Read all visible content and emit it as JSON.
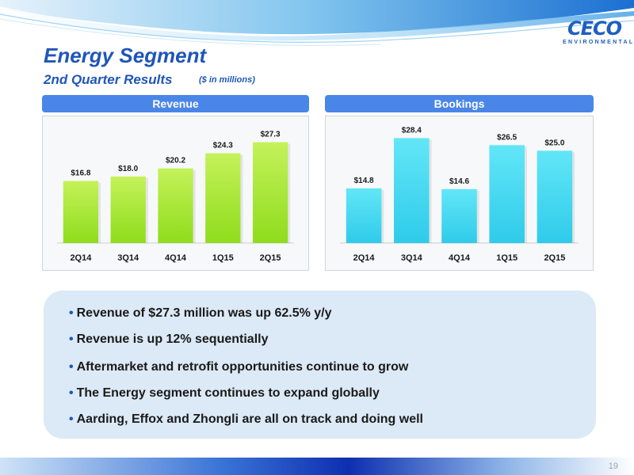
{
  "header": {
    "title": "Energy Segment",
    "subtitle": "2nd Quarter Results",
    "units_note": "($ in millions)"
  },
  "logo": {
    "name": "CECO",
    "tagline": "ENVIRONMENTAL"
  },
  "page_number": "19",
  "colors": {
    "accent": "#1f56b8",
    "panel_header": "#4a86e8",
    "revenue_bar": "#a6e62c",
    "bookings_bar": "#45d9f0",
    "bullet_box": "#dce9f6"
  },
  "chart_data": [
    {
      "type": "bar",
      "title": "Revenue",
      "categories": [
        "2Q14",
        "3Q14",
        "4Q14",
        "1Q15",
        "2Q15"
      ],
      "values": [
        16.8,
        18.0,
        20.2,
        24.3,
        27.3
      ],
      "value_labels": [
        "$16.8",
        "$18.0",
        "$20.2",
        "$24.3",
        "$27.3"
      ],
      "ylim": [
        0,
        30
      ],
      "grid": false,
      "legend": "none"
    },
    {
      "type": "bar",
      "title": "Bookings",
      "categories": [
        "2Q14",
        "3Q14",
        "4Q14",
        "1Q15",
        "2Q15"
      ],
      "values": [
        14.8,
        28.4,
        14.6,
        26.5,
        25.0
      ],
      "value_labels": [
        "$14.8",
        "$28.4",
        "$14.6",
        "$26.5",
        "$25.0"
      ],
      "ylim": [
        0,
        30
      ],
      "grid": false,
      "legend": "none"
    }
  ],
  "bullets": [
    "Revenue of $27.3 million was up 62.5% y/y",
    "Revenue is up 12% sequentially",
    "Aftermarket and retrofit opportunities continue to grow",
    "The Energy segment continues to expand globally",
    "Aarding, Effox and Zhongli are all on track and doing well"
  ]
}
